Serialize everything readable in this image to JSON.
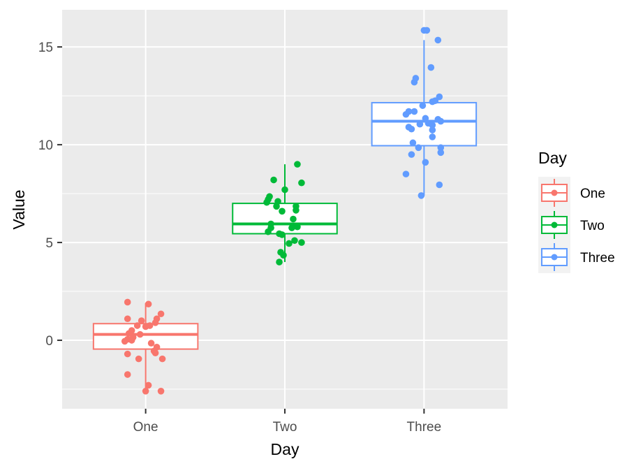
{
  "chart_data": {
    "type": "boxplot",
    "xlabel": "Day",
    "ylabel": "Value",
    "categories": [
      "One",
      "Two",
      "Three"
    ],
    "ylim": [
      -3.5,
      16.9
    ],
    "y_ticks": [
      0,
      5,
      10,
      15
    ],
    "grid": true,
    "legend": {
      "title": "Day",
      "position": "right",
      "entries": [
        "One",
        "Two",
        "Three"
      ]
    },
    "colors": {
      "One": "#F8766D",
      "Two": "#00BA38",
      "Three": "#619CFF",
      "panel_background": "#EBEBEB",
      "grid": "#FFFFFF"
    },
    "series": [
      {
        "category": "One",
        "box": {
          "q1": -0.45,
          "median": 0.3,
          "q3": 0.85,
          "whisker_low": -2.6,
          "whisker_high": 1.9
        },
        "points": [
          {
            "x": -0.13,
            "y": 1.95
          },
          {
            "x": 0.02,
            "y": 1.85
          },
          {
            "x": 0.11,
            "y": 1.35
          },
          {
            "x": -0.13,
            "y": 1.1
          },
          {
            "x": 0.08,
            "y": 1.1
          },
          {
            "x": -0.03,
            "y": 1.0
          },
          {
            "x": 0.07,
            "y": 0.9
          },
          {
            "x": -0.06,
            "y": 0.75
          },
          {
            "x": 0.0,
            "y": 0.7
          },
          {
            "x": 0.03,
            "y": 0.75
          },
          {
            "x": -0.1,
            "y": 0.5
          },
          {
            "x": -0.12,
            "y": 0.35
          },
          {
            "x": -0.04,
            "y": 0.3
          },
          {
            "x": -0.09,
            "y": 0.15
          },
          {
            "x": -0.13,
            "y": 0.05
          },
          {
            "x": -0.1,
            "y": 0.0
          },
          {
            "x": -0.15,
            "y": -0.05
          },
          {
            "x": 0.04,
            "y": -0.15
          },
          {
            "x": 0.08,
            "y": -0.35
          },
          {
            "x": 0.06,
            "y": -0.55
          },
          {
            "x": 0.07,
            "y": -0.65
          },
          {
            "x": -0.13,
            "y": -0.7
          },
          {
            "x": -0.05,
            "y": -0.95
          },
          {
            "x": 0.12,
            "y": -0.95
          },
          {
            "x": -0.13,
            "y": -1.75
          },
          {
            "x": 0.02,
            "y": -2.3
          },
          {
            "x": 0.0,
            "y": -2.6
          },
          {
            "x": 0.11,
            "y": -2.6
          }
        ]
      },
      {
        "category": "Two",
        "box": {
          "q1": 5.45,
          "median": 5.95,
          "q3": 7.0,
          "whisker_low": 4.0,
          "whisker_high": 9.0
        },
        "points": [
          {
            "x": 0.09,
            "y": 9.0
          },
          {
            "x": -0.08,
            "y": 8.2
          },
          {
            "x": 0.12,
            "y": 8.05
          },
          {
            "x": 0.0,
            "y": 7.7
          },
          {
            "x": -0.11,
            "y": 7.35
          },
          {
            "x": -0.12,
            "y": 7.2
          },
          {
            "x": -0.05,
            "y": 7.1
          },
          {
            "x": -0.13,
            "y": 7.05
          },
          {
            "x": -0.06,
            "y": 6.85
          },
          {
            "x": 0.08,
            "y": 6.85
          },
          {
            "x": 0.08,
            "y": 6.65
          },
          {
            "x": -0.02,
            "y": 6.6
          },
          {
            "x": 0.06,
            "y": 6.2
          },
          {
            "x": -0.1,
            "y": 5.95
          },
          {
            "x": -0.1,
            "y": 5.75
          },
          {
            "x": 0.06,
            "y": 5.85
          },
          {
            "x": 0.09,
            "y": 5.8
          },
          {
            "x": 0.05,
            "y": 5.75
          },
          {
            "x": -0.12,
            "y": 5.55
          },
          {
            "x": -0.04,
            "y": 5.45
          },
          {
            "x": -0.02,
            "y": 5.4
          },
          {
            "x": 0.07,
            "y": 5.1
          },
          {
            "x": 0.12,
            "y": 5.0
          },
          {
            "x": 0.03,
            "y": 4.95
          },
          {
            "x": -0.03,
            "y": 4.5
          },
          {
            "x": -0.01,
            "y": 4.35
          },
          {
            "x": -0.04,
            "y": 4.0
          }
        ]
      },
      {
        "category": "Three",
        "box": {
          "q1": 9.95,
          "median": 11.2,
          "q3": 12.15,
          "whisker_low": 7.4,
          "whisker_high": 15.35
        },
        "points": [
          {
            "x": 0.0,
            "y": 15.85
          },
          {
            "x": 0.02,
            "y": 15.85
          },
          {
            "x": 0.1,
            "y": 15.35
          },
          {
            "x": 0.05,
            "y": 13.95
          },
          {
            "x": -0.06,
            "y": 13.4
          },
          {
            "x": -0.07,
            "y": 13.2
          },
          {
            "x": 0.11,
            "y": 12.45
          },
          {
            "x": 0.06,
            "y": 12.2
          },
          {
            "x": 0.08,
            "y": 12.25
          },
          {
            "x": -0.01,
            "y": 12.0
          },
          {
            "x": -0.11,
            "y": 11.7
          },
          {
            "x": -0.07,
            "y": 11.7
          },
          {
            "x": -0.13,
            "y": 11.55
          },
          {
            "x": 0.1,
            "y": 11.3
          },
          {
            "x": 0.01,
            "y": 11.35
          },
          {
            "x": -0.03,
            "y": 11.05
          },
          {
            "x": 0.03,
            "y": 11.1
          },
          {
            "x": 0.06,
            "y": 11.0
          },
          {
            "x": -0.11,
            "y": 10.9
          },
          {
            "x": -0.09,
            "y": 10.8
          },
          {
            "x": 0.06,
            "y": 10.75
          },
          {
            "x": 0.12,
            "y": 11.2
          },
          {
            "x": 0.06,
            "y": 10.4
          },
          {
            "x": -0.08,
            "y": 10.1
          },
          {
            "x": -0.04,
            "y": 9.85
          },
          {
            "x": 0.12,
            "y": 9.85
          },
          {
            "x": -0.09,
            "y": 9.5
          },
          {
            "x": 0.12,
            "y": 9.6
          },
          {
            "x": 0.01,
            "y": 9.1
          },
          {
            "x": -0.13,
            "y": 8.5
          },
          {
            "x": 0.11,
            "y": 7.95
          },
          {
            "x": -0.02,
            "y": 7.4
          }
        ]
      }
    ]
  }
}
